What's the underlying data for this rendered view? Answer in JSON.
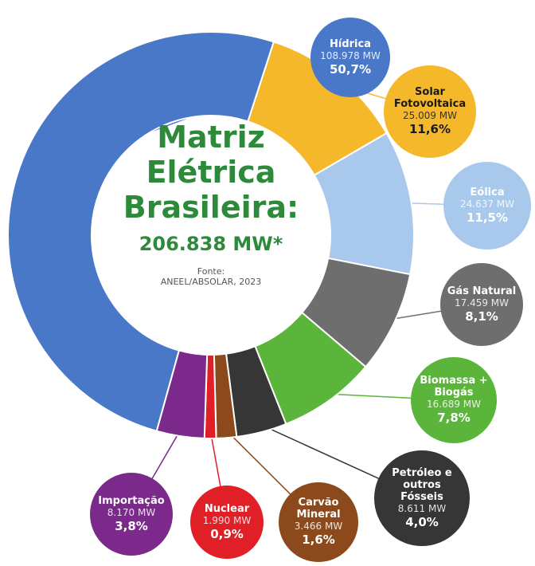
{
  "chart_data": {
    "type": "donut",
    "title_lines": [
      "Matriz",
      "Elétrica",
      "Brasileira:"
    ],
    "subtitle": "206.838 MW*",
    "source_lines": [
      "Fonte:",
      "ANEEL/ABSOLAR, 2023"
    ],
    "categories": [
      "Hídrica",
      "Solar Fotovoltaica",
      "Eólica",
      "Gás Natural",
      "Biomassa + Biogás",
      "Petróleo e outros Fósseis",
      "Carvão Mineral",
      "Nuclear",
      "Importação"
    ],
    "values": [
      108978,
      25009,
      24637,
      17459,
      16689,
      8611,
      3466,
      1990,
      8170
    ],
    "value_labels": [
      "108.978 MW",
      "25.009 MW",
      "24.637 MW",
      "17.459 MW",
      "16.689 MW",
      "8.611 MW",
      "3.466 MW",
      "1.990 MW",
      "8.170 MW"
    ],
    "shares": [
      50.7,
      11.6,
      11.5,
      8.1,
      7.8,
      4.0,
      1.6,
      0.9,
      3.8
    ],
    "share_labels": [
      "50,7%",
      "11,6%",
      "11,5%",
      "8,1%",
      "7,8%",
      "4,0%",
      "1,6%",
      "0,9%",
      "3,8%"
    ],
    "colors": [
      "#4a78c9",
      "#f6b82b",
      "#a8c9ec",
      "#6e6e6e",
      "#5bb53b",
      "#363636",
      "#8c4a1c",
      "#e11f26",
      "#7b2a8c"
    ]
  }
}
